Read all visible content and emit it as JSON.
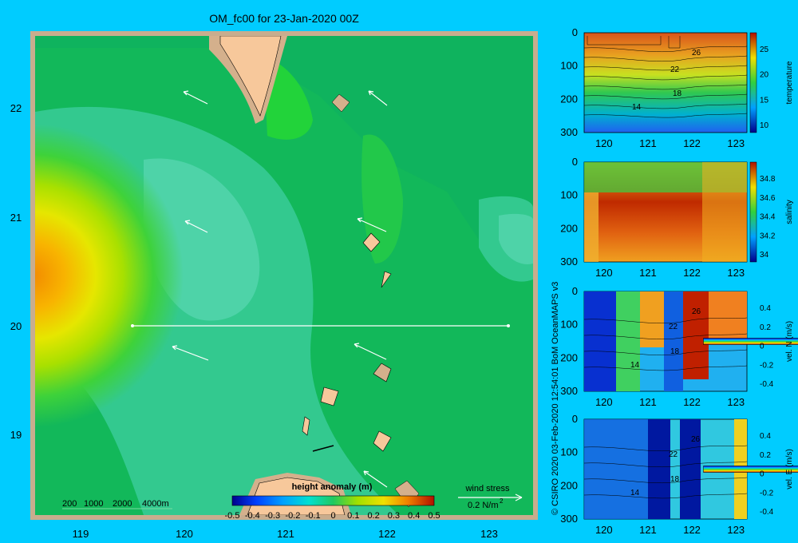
{
  "title": "OM_fc00 for 23-Jan-2020 00Z",
  "map": {
    "lon_ticks": [
      "119",
      "120",
      "121",
      "122",
      "123"
    ],
    "lat_ticks": [
      "22",
      "21",
      "20",
      "19"
    ],
    "depth_legend": [
      "200",
      "1000",
      "2000",
      "4000m"
    ],
    "colorbar": {
      "label": "height anomaly  (m)",
      "ticks": [
        "-0.5",
        "-0.4",
        "-0.3",
        "-0.2",
        "-0.1",
        "0",
        "0.1",
        "0.2",
        "0.3",
        "0.4",
        "0.5"
      ]
    },
    "wind": {
      "label": "wind stress",
      "scale": "0.2 N/m",
      "scale_sup": "2"
    },
    "colors": {
      "background": "#00ccff",
      "sea_base": "#12b85a",
      "land": "#f7c89b",
      "shelf": "#d4b08c"
    }
  },
  "credit": "© CSIRO 2020   03-Feb-2020 12:54:01 BoM OceanMAPS v3",
  "panels": [
    {
      "label": "temperature",
      "y_ticks": [
        "0",
        "100",
        "200",
        "300"
      ],
      "x_ticks": [
        "120",
        "121",
        "122",
        "123"
      ],
      "cbar_ticks": [
        "25",
        "20",
        "15",
        "10"
      ],
      "contours": [
        "26",
        "22",
        "18",
        "14"
      ]
    },
    {
      "label": "salinity",
      "y_ticks": [
        "0",
        "100",
        "200",
        "300"
      ],
      "x_ticks": [
        "120",
        "121",
        "122",
        "123"
      ],
      "cbar_ticks": [
        "34.8",
        "34.6",
        "34.4",
        "34.2",
        "34"
      ],
      "contours": []
    },
    {
      "label": "vel. N (m/s)",
      "y_ticks": [
        "0",
        "100",
        "200",
        "300"
      ],
      "x_ticks": [
        "120",
        "121",
        "122",
        "123"
      ],
      "cbar_ticks": [
        "0.4",
        "0.2",
        "0",
        "-0.2",
        "-0.4"
      ],
      "contours": [
        "26",
        "22",
        "18",
        "14"
      ]
    },
    {
      "label": "vel. E (m/s)",
      "y_ticks": [
        "0",
        "100",
        "200",
        "300"
      ],
      "x_ticks": [
        "120",
        "121",
        "122",
        "123"
      ],
      "cbar_ticks": [
        "0.4",
        "0.2",
        "0",
        "-0.2",
        "-0.4"
      ],
      "contours": [
        "26",
        "22",
        "18",
        "14"
      ]
    }
  ]
}
